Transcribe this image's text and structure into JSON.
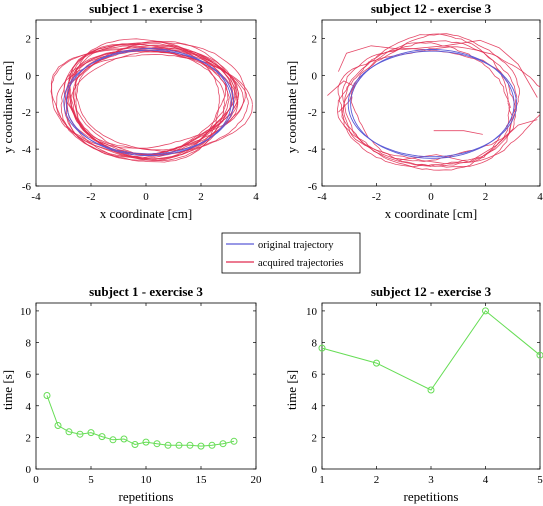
{
  "colors": {
    "original": "#5b5bd6",
    "acquired": "#e02a4f",
    "time_line": "#66dd55"
  },
  "legend": {
    "items": [
      {
        "label": "original trajectory",
        "color": "#5b5bd6"
      },
      {
        "label": "acquired trajectories",
        "color": "#e02a4f"
      }
    ]
  },
  "chart_data": [
    {
      "type": "line",
      "title": "subject 1 - exercise 3",
      "xlabel": "x coordinate [cm]",
      "ylabel": "y coordinate [cm]",
      "xlim": [
        -4,
        4
      ],
      "ylim": [
        -6,
        3
      ],
      "xticks": [
        -4,
        -2,
        0,
        2,
        4
      ],
      "yticks": [
        -6,
        -4,
        -2,
        0,
        2
      ],
      "grid": false,
      "series": [
        {
          "name": "original trajectory",
          "shape": "ellipse",
          "center": [
            0.1,
            -1.45
          ],
          "radii": [
            3.0,
            2.9
          ],
          "loops": 2
        },
        {
          "name": "acquired trajectories",
          "shape": "ellipse-loops",
          "center": [
            0.1,
            -1.4
          ],
          "radii": [
            3.15,
            2.95
          ],
          "loops": 18
        }
      ]
    },
    {
      "type": "line",
      "title": "subject 12 - exercise 3",
      "xlabel": "x coordinate [cm]",
      "ylabel": "y coordinate [cm]",
      "xlim": [
        -4,
        4
      ],
      "ylim": [
        -6,
        3
      ],
      "xticks": [
        -4,
        -2,
        0,
        2,
        4
      ],
      "yticks": [
        -6,
        -4,
        -2,
        0,
        2
      ],
      "grid": false,
      "series": [
        {
          "name": "original trajectory",
          "shape": "ellipse",
          "center": [
            0.05,
            -1.55
          ],
          "radii": [
            3.0,
            2.95
          ],
          "loops": 2
        },
        {
          "name": "acquired trajectories",
          "shape": "ellipse-loops",
          "center": [
            0.1,
            -1.5
          ],
          "radii": [
            3.4,
            3.3
          ],
          "loops": 6
        }
      ]
    },
    {
      "type": "line",
      "title": "subject 1 - exercise 3",
      "xlabel": "repetitions",
      "ylabel": "time [s]",
      "xlim": [
        0,
        20
      ],
      "ylim": [
        0,
        10.5
      ],
      "xticks": [
        0,
        5,
        10,
        15,
        20
      ],
      "yticks": [
        0,
        2,
        4,
        6,
        8,
        10
      ],
      "grid": false,
      "x": [
        1,
        2,
        3,
        4,
        5,
        6,
        7,
        8,
        9,
        10,
        11,
        12,
        13,
        14,
        15,
        16,
        17,
        18
      ],
      "y": [
        4.65,
        2.75,
        2.35,
        2.2,
        2.3,
        2.05,
        1.85,
        1.9,
        1.55,
        1.7,
        1.6,
        1.5,
        1.5,
        1.5,
        1.45,
        1.5,
        1.6,
        1.75
      ]
    },
    {
      "type": "line",
      "title": "subject 12 - exercise 3",
      "xlabel": "repetitions",
      "ylabel": "time [s]",
      "xlim": [
        1,
        5
      ],
      "ylim": [
        0,
        10.5
      ],
      "xticks": [
        1,
        2,
        3,
        4,
        5
      ],
      "yticks": [
        0,
        2,
        4,
        6,
        8,
        10
      ],
      "grid": false,
      "x": [
        1,
        2,
        3,
        4,
        5
      ],
      "y": [
        7.65,
        6.7,
        5.0,
        10.0,
        7.2
      ]
    }
  ]
}
